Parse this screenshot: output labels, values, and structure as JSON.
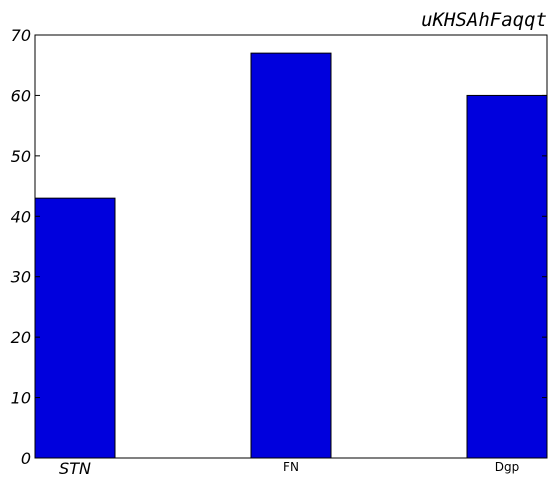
{
  "chart_data": {
    "type": "bar",
    "title": "uKHSAhFaqqt",
    "categories": [
      "STN",
      "FN",
      "Dgp"
    ],
    "values": [
      43,
      67,
      60
    ],
    "xlabel": "",
    "ylabel": "",
    "ylim": [
      0,
      70
    ],
    "yticks": [
      "0",
      "10",
      "20",
      "30",
      "40",
      "50",
      "60",
      "70"
    ],
    "grid": false,
    "legend": "none",
    "bar_color": "#0000dd",
    "edge_color": "#000000"
  }
}
